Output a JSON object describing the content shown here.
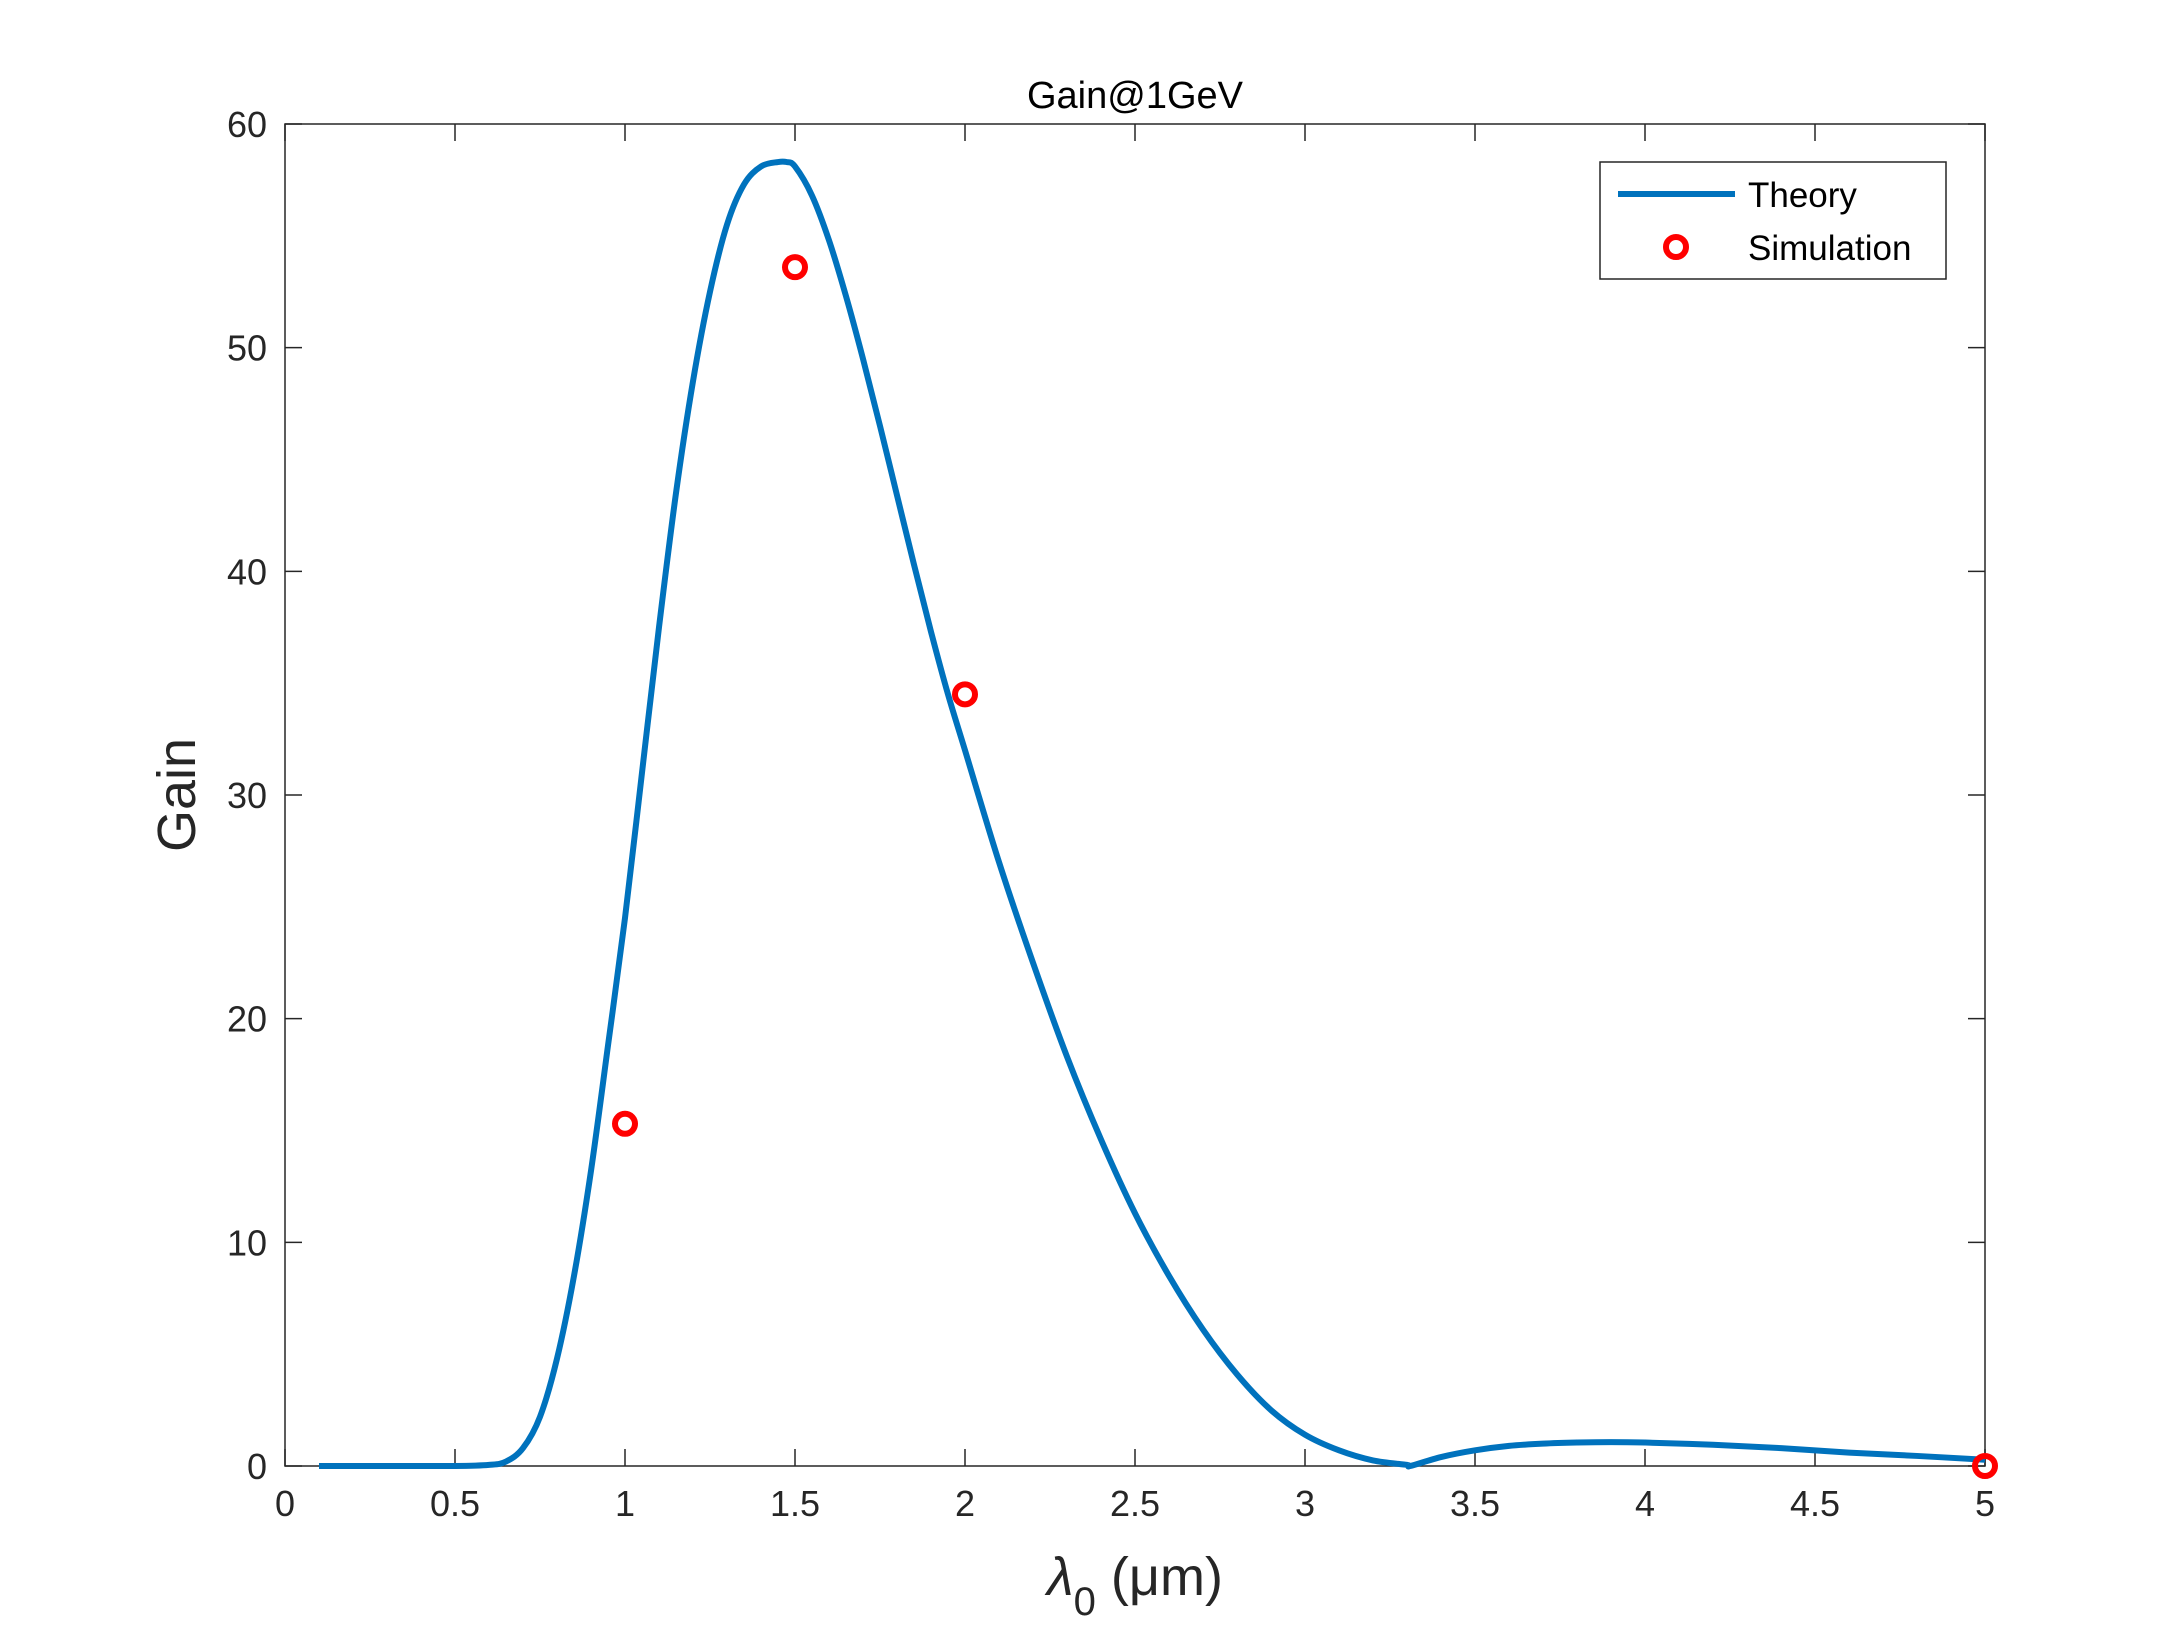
{
  "chart_data": {
    "type": "line",
    "title": "Gain@1GeV",
    "xlabel": "λ0 (μm)",
    "xlabel_main": "λ",
    "xlabel_sub": "0",
    "xlabel_unit": " (μm)",
    "ylabel": "Gain",
    "xlim": [
      0,
      5
    ],
    "ylim": [
      0,
      60
    ],
    "xticks": [
      0,
      0.5,
      1,
      1.5,
      2,
      2.5,
      3,
      3.5,
      4,
      4.5,
      5
    ],
    "xtick_labels": [
      "0",
      "0.5",
      "1",
      "1.5",
      "2",
      "2.5",
      "3",
      "3.5",
      "4",
      "4.5",
      "5"
    ],
    "yticks": [
      0,
      10,
      20,
      30,
      40,
      50,
      60
    ],
    "ytick_labels": [
      "0",
      "10",
      "20",
      "30",
      "40",
      "50",
      "60"
    ],
    "grid": false,
    "legend": {
      "placement": "top-right",
      "entries": [
        "Theory",
        "Simulation"
      ]
    },
    "series": [
      {
        "name": "Theory",
        "kind": "line",
        "color": "#0072BD",
        "x": [
          0.1,
          0.3,
          0.5,
          0.6,
          0.65,
          0.7,
          0.75,
          0.8,
          0.85,
          0.9,
          0.95,
          1.0,
          1.05,
          1.1,
          1.15,
          1.2,
          1.25,
          1.3,
          1.35,
          1.4,
          1.45,
          1.475,
          1.5,
          1.55,
          1.6,
          1.65,
          1.7,
          1.75,
          1.8,
          1.85,
          1.9,
          1.95,
          2.0,
          2.1,
          2.2,
          2.3,
          2.4,
          2.5,
          2.6,
          2.7,
          2.8,
          2.9,
          3.0,
          3.1,
          3.2,
          3.3,
          3.31,
          3.4,
          3.5,
          3.6,
          3.7,
          3.8,
          3.9,
          4.0,
          4.2,
          4.4,
          4.6,
          4.8,
          5.0
        ],
        "y": [
          0,
          0,
          0,
          0.05,
          0.2,
          0.8,
          2.2,
          4.8,
          8.5,
          13.2,
          18.8,
          24.5,
          31.0,
          37.5,
          43.5,
          48.5,
          52.5,
          55.5,
          57.3,
          58.1,
          58.3,
          58.3,
          58.1,
          56.8,
          54.8,
          52.3,
          49.5,
          46.5,
          43.4,
          40.3,
          37.3,
          34.5,
          32.0,
          27.0,
          22.5,
          18.3,
          14.6,
          11.3,
          8.5,
          6.1,
          4.1,
          2.5,
          1.4,
          0.7,
          0.25,
          0.05,
          0.0,
          0.4,
          0.7,
          0.9,
          1.0,
          1.05,
          1.07,
          1.05,
          0.95,
          0.8,
          0.6,
          0.45,
          0.28
        ]
      },
      {
        "name": "Simulation",
        "kind": "marker",
        "marker": "circle",
        "color": "#FF0000",
        "x": [
          1.0,
          1.5,
          2.0,
          5.0
        ],
        "y": [
          15.3,
          53.6,
          34.5,
          0.0
        ]
      }
    ]
  }
}
